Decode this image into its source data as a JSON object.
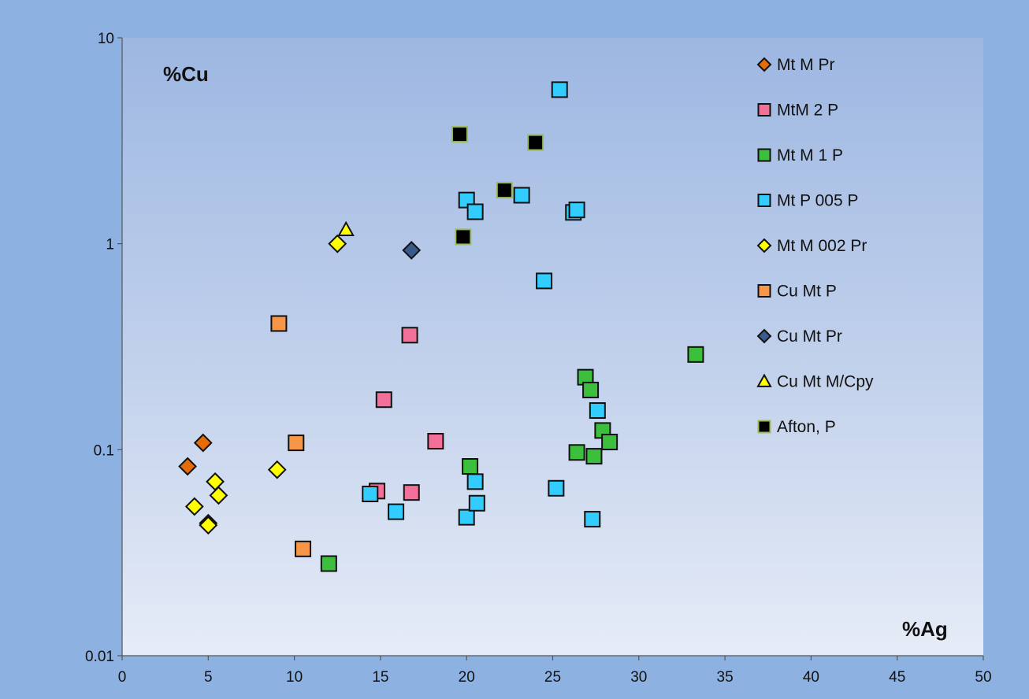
{
  "chart_data": {
    "type": "scatter",
    "title": "",
    "xlabel": "%Ag",
    "ylabel": "%Cu",
    "xlim": [
      0,
      50
    ],
    "ylim": [
      0.01,
      10
    ],
    "y_scale": "log",
    "x_ticks": [
      "0",
      "5",
      "10",
      "15",
      "20",
      "25",
      "30",
      "35",
      "40",
      "45",
      "50"
    ],
    "y_ticks": [
      "0.01",
      "0.1",
      "1",
      "10"
    ],
    "grid": false,
    "legend_position": "right",
    "series": [
      {
        "name": "Mt M Pr",
        "marker": "diamond",
        "color": "#e46c0a",
        "points": [
          [
            3.8,
            0.083
          ],
          [
            4.7,
            0.108
          ],
          [
            5.0,
            0.044
          ]
        ]
      },
      {
        "name": "MtM 2 P",
        "marker": "square",
        "color": "#f3709a",
        "points": [
          [
            15.2,
            0.175
          ],
          [
            16.7,
            0.36
          ],
          [
            18.2,
            0.11
          ],
          [
            14.8,
            0.063
          ],
          [
            16.8,
            0.062
          ]
        ]
      },
      {
        "name": "Mt M 1 P",
        "marker": "square",
        "color": "#3cbf3c",
        "points": [
          [
            12.0,
            0.028
          ],
          [
            20.2,
            0.083
          ],
          [
            26.4,
            0.097
          ],
          [
            27.4,
            0.093
          ],
          [
            26.9,
            0.225
          ],
          [
            27.2,
            0.195
          ],
          [
            27.9,
            0.124
          ],
          [
            28.3,
            0.109
          ],
          [
            33.3,
            0.29
          ]
        ]
      },
      {
        "name": "Mt P 005 P",
        "marker": "square",
        "color": "#33ccff",
        "points": [
          [
            25.4,
            5.6
          ],
          [
            20.0,
            1.63
          ],
          [
            20.5,
            1.43
          ],
          [
            23.2,
            1.72
          ],
          [
            26.2,
            1.42
          ],
          [
            26.4,
            1.46
          ],
          [
            24.5,
            0.66
          ],
          [
            27.6,
            0.155
          ],
          [
            14.4,
            0.061
          ],
          [
            15.9,
            0.05
          ],
          [
            20.0,
            0.047
          ],
          [
            20.5,
            0.07
          ],
          [
            20.6,
            0.055
          ],
          [
            25.2,
            0.065
          ],
          [
            27.3,
            0.046
          ]
        ]
      },
      {
        "name": "Mt M 002 Pr",
        "marker": "diamond",
        "color": "#ffff00",
        "points": [
          [
            12.5,
            1.0
          ],
          [
            9.0,
            0.08
          ],
          [
            5.4,
            0.07
          ],
          [
            5.6,
            0.06
          ],
          [
            4.2,
            0.053
          ],
          [
            5.0,
            0.043
          ]
        ]
      },
      {
        "name": "Cu Mt P",
        "marker": "square",
        "color": "#f79646",
        "points": [
          [
            9.1,
            0.41
          ],
          [
            10.1,
            0.108
          ],
          [
            10.5,
            0.033
          ]
        ]
      },
      {
        "name": "Cu Mt Pr",
        "marker": "diamond",
        "color": "#3a5a8c",
        "points": [
          [
            16.8,
            0.93
          ]
        ]
      },
      {
        "name": "Cu Mt M/Cpy",
        "marker": "triangle",
        "color": "#ffff00",
        "points": [
          [
            13.0,
            1.17
          ]
        ]
      },
      {
        "name": "Afton, P",
        "marker": "square",
        "color": "#000000",
        "points": [
          [
            19.6,
            3.4
          ],
          [
            24.0,
            3.1
          ],
          [
            22.2,
            1.82
          ],
          [
            19.8,
            1.08
          ]
        ]
      }
    ]
  }
}
